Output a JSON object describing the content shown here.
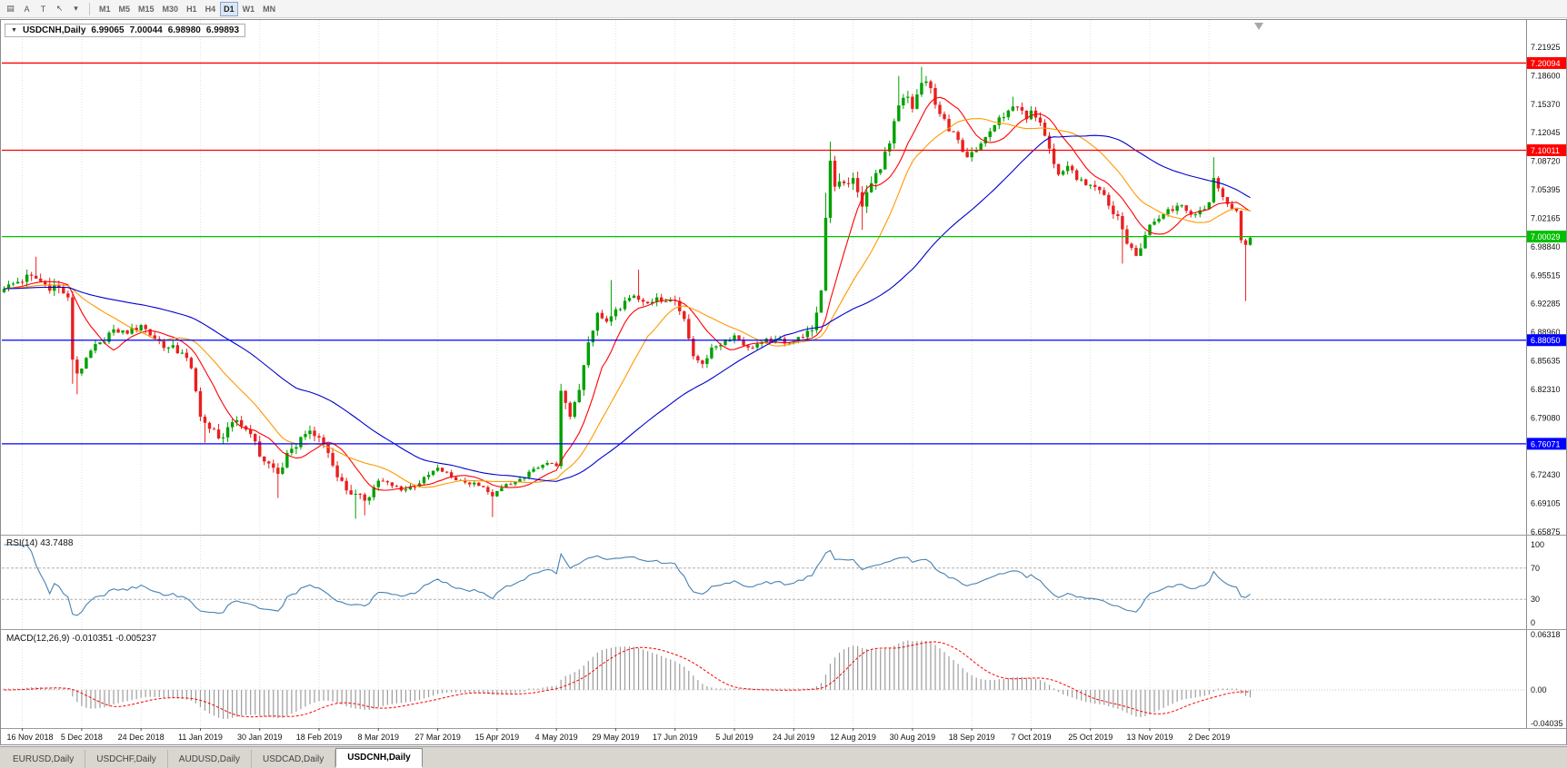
{
  "toolbar": {
    "tools": [
      {
        "name": "chart-grid-icon",
        "glyph": "▤"
      },
      {
        "name": "a-tool-button",
        "glyph": "A"
      },
      {
        "name": "t-tool-button",
        "glyph": "T"
      },
      {
        "name": "cursor-tool-button",
        "glyph": "↖"
      },
      {
        "name": "tool-dropdown-arrow-icon",
        "glyph": "▾"
      }
    ],
    "timeframes": [
      {
        "label": "M1",
        "active": false
      },
      {
        "label": "M5",
        "active": false
      },
      {
        "label": "M15",
        "active": false
      },
      {
        "label": "M30",
        "active": false
      },
      {
        "label": "H1",
        "active": false
      },
      {
        "label": "H4",
        "active": false
      },
      {
        "label": "D1",
        "active": true
      },
      {
        "label": "W1",
        "active": false
      },
      {
        "label": "MN",
        "active": false
      }
    ]
  },
  "chart": {
    "header": {
      "dropdown_glyph": "▼",
      "symbol_label": "USDCNH,Daily",
      "open": "6.99065",
      "high": "7.00044",
      "low": "6.98980",
      "close": "6.99893"
    }
  },
  "indicators": {
    "rsi": {
      "label": "RSI(14) 43.7488",
      "period": 14,
      "axis_labels": [
        "100",
        "70",
        "30",
        "0"
      ],
      "levels": [
        70,
        30
      ]
    },
    "macd": {
      "label": "MACD(12,26,9) -0.010351 -0.005237",
      "fast": 12,
      "slow": 26,
      "signal": 9,
      "axis_labels": [
        "0.06318",
        "0.00",
        "-0.04035"
      ]
    }
  },
  "tabs": {
    "items": [
      {
        "label": "EURUSD,Daily",
        "active": false
      },
      {
        "label": "USDCHF,Daily",
        "active": false
      },
      {
        "label": "AUDUSD,Daily",
        "active": false
      },
      {
        "label": "USDCAD,Daily",
        "active": false
      },
      {
        "label": "USDCNH,Daily",
        "active": true
      }
    ]
  },
  "colors": {
    "bull": "#00A000",
    "bear": "#E82020",
    "rsi": "#4682B4",
    "macd_hist": "#9C9C9C",
    "macd_signal": "#FF0000",
    "grid": "#E0E0E0"
  },
  "chart_data": {
    "type": "candlestick",
    "symbol": "USDCNH",
    "timeframe": "Daily",
    "bars_total": 274,
    "price_ticks": [
      "7.21925",
      "7.18600",
      "7.15370",
      "7.12045",
      "7.08720",
      "7.05395",
      "7.02165",
      "6.98840",
      "6.95515",
      "6.92285",
      "6.88960",
      "6.85635",
      "6.82310",
      "6.79080",
      "6.75755",
      "6.72430",
      "6.69105",
      "6.65875"
    ],
    "h_lines": [
      {
        "price": 7.20094,
        "label": "7.20094",
        "color": "#FF0000"
      },
      {
        "price": 7.10011,
        "label": "7.10011",
        "color": "#FF0000"
      },
      {
        "price": 7.00029,
        "label": "7.00029",
        "color": "#00C000"
      },
      {
        "price": 6.8805,
        "label": "6.88050",
        "color": "#0000FF"
      },
      {
        "price": 6.76071,
        "label": "6.76071",
        "color": "#0000FF"
      }
    ],
    "moving_averages": [
      {
        "period": 10,
        "color": "#FF0000"
      },
      {
        "period": 20,
        "color": "#FF9900"
      },
      {
        "period": 50,
        "color": "#0000CD"
      }
    ],
    "date_ticks": [
      {
        "bar": 4,
        "label": "16 Nov 2018"
      },
      {
        "bar": 17,
        "label": "5 Dec 2018"
      },
      {
        "bar": 30,
        "label": "24 Dec 2018"
      },
      {
        "bar": 43,
        "label": "11 Jan 2019"
      },
      {
        "bar": 56,
        "label": "30 Jan 2019"
      },
      {
        "bar": 69,
        "label": "18 Feb 2019"
      },
      {
        "bar": 82,
        "label": "8 Mar 2019"
      },
      {
        "bar": 95,
        "label": "27 Mar 2019"
      },
      {
        "bar": 108,
        "label": "15 Apr 2019"
      },
      {
        "bar": 121,
        "label": "4 May 2019"
      },
      {
        "bar": 134,
        "label": "29 May 2019"
      },
      {
        "bar": 147,
        "label": "17 Jun 2019"
      },
      {
        "bar": 160,
        "label": "5 Jul 2019"
      },
      {
        "bar": 173,
        "label": "24 Jul 2019"
      },
      {
        "bar": 186,
        "label": "12 Aug 2019"
      },
      {
        "bar": 199,
        "label": "30 Aug 2019"
      },
      {
        "bar": 212,
        "label": "18 Sep 2019"
      },
      {
        "bar": 225,
        "label": "7 Oct 2019"
      },
      {
        "bar": 238,
        "label": "25 Oct 2019"
      },
      {
        "bar": 251,
        "label": "13 Nov 2019"
      },
      {
        "bar": 264,
        "label": "2 Dec 2019"
      }
    ],
    "close_keypoints": [
      [
        0,
        6.94
      ],
      [
        3,
        6.948
      ],
      [
        6,
        6.955
      ],
      [
        9,
        6.945
      ],
      [
        12,
        6.942
      ],
      [
        14,
        6.93
      ],
      [
        15,
        6.858
      ],
      [
        16,
        6.842
      ],
      [
        18,
        6.86
      ],
      [
        21,
        6.878
      ],
      [
        24,
        6.893
      ],
      [
        27,
        6.888
      ],
      [
        30,
        6.898
      ],
      [
        33,
        6.882
      ],
      [
        36,
        6.872
      ],
      [
        39,
        6.866
      ],
      [
        41,
        6.848
      ],
      [
        43,
        6.792
      ],
      [
        45,
        6.778
      ],
      [
        48,
        6.768
      ],
      [
        51,
        6.788
      ],
      [
        54,
        6.772
      ],
      [
        56,
        6.746
      ],
      [
        58,
        6.738
      ],
      [
        60,
        6.726
      ],
      [
        63,
        6.755
      ],
      [
        66,
        6.772
      ],
      [
        69,
        6.768
      ],
      [
        71,
        6.75
      ],
      [
        73,
        6.722
      ],
      [
        76,
        6.702
      ],
      [
        79,
        6.695
      ],
      [
        82,
        6.718
      ],
      [
        85,
        6.712
      ],
      [
        88,
        6.708
      ],
      [
        91,
        6.715
      ],
      [
        95,
        6.733
      ],
      [
        98,
        6.722
      ],
      [
        101,
        6.716
      ],
      [
        104,
        6.712
      ],
      [
        107,
        6.7
      ],
      [
        108,
        6.706
      ],
      [
        111,
        6.714
      ],
      [
        114,
        6.722
      ],
      [
        117,
        6.733
      ],
      [
        120,
        6.738
      ],
      [
        121,
        6.735
      ],
      [
        122,
        6.822
      ],
      [
        123,
        6.808
      ],
      [
        124,
        6.792
      ],
      [
        126,
        6.823
      ],
      [
        128,
        6.878
      ],
      [
        130,
        6.912
      ],
      [
        132,
        6.902
      ],
      [
        134,
        6.916
      ],
      [
        136,
        6.926
      ],
      [
        138,
        6.932
      ],
      [
        140,
        6.925
      ],
      [
        143,
        6.93
      ],
      [
        147,
        6.926
      ],
      [
        149,
        6.905
      ],
      [
        151,
        6.862
      ],
      [
        153,
        6.853
      ],
      [
        155,
        6.872
      ],
      [
        158,
        6.88
      ],
      [
        160,
        6.886
      ],
      [
        163,
        6.872
      ],
      [
        166,
        6.878
      ],
      [
        169,
        6.882
      ],
      [
        172,
        6.878
      ],
      [
        175,
        6.884
      ],
      [
        177,
        6.892
      ],
      [
        179,
        6.938
      ],
      [
        180,
        7.022
      ],
      [
        181,
        7.088
      ],
      [
        182,
        7.058
      ],
      [
        184,
        7.062
      ],
      [
        186,
        7.068
      ],
      [
        188,
        7.035
      ],
      [
        190,
        7.062
      ],
      [
        192,
        7.078
      ],
      [
        194,
        7.108
      ],
      [
        196,
        7.152
      ],
      [
        198,
        7.162
      ],
      [
        199,
        7.148
      ],
      [
        201,
        7.178
      ],
      [
        203,
        7.172
      ],
      [
        205,
        7.142
      ],
      [
        207,
        7.122
      ],
      [
        209,
        7.112
      ],
      [
        211,
        7.092
      ],
      [
        212,
        7.098
      ],
      [
        214,
        7.108
      ],
      [
        216,
        7.122
      ],
      [
        218,
        7.138
      ],
      [
        220,
        7.146
      ],
      [
        222,
        7.15
      ],
      [
        224,
        7.136
      ],
      [
        225,
        7.146
      ],
      [
        227,
        7.132
      ],
      [
        229,
        7.102
      ],
      [
        231,
        7.072
      ],
      [
        233,
        7.082
      ],
      [
        235,
        7.066
      ],
      [
        238,
        7.06
      ],
      [
        240,
        7.054
      ],
      [
        242,
        7.036
      ],
      [
        244,
        7.024
      ],
      [
        246,
        6.992
      ],
      [
        248,
        6.978
      ],
      [
        250,
        7.002
      ],
      [
        251,
        7.014
      ],
      [
        253,
        7.021
      ],
      [
        255,
        7.032
      ],
      [
        257,
        7.036
      ],
      [
        259,
        7.03
      ],
      [
        261,
        7.026
      ],
      [
        263,
        7.032
      ],
      [
        264,
        7.04
      ],
      [
        265,
        7.068
      ],
      [
        266,
        7.056
      ],
      [
        267,
        7.046
      ],
      [
        268,
        7.038
      ],
      [
        270,
        7.03
      ],
      [
        271,
        6.996
      ],
      [
        272,
        6.9907
      ],
      [
        273,
        6.99893
      ]
    ],
    "volatility_keypoints": [
      [
        0,
        0.01
      ],
      [
        13,
        0.016
      ],
      [
        17,
        0.014
      ],
      [
        25,
        0.009
      ],
      [
        40,
        0.012
      ],
      [
        44,
        0.012
      ],
      [
        60,
        0.012
      ],
      [
        75,
        0.012
      ],
      [
        90,
        0.007
      ],
      [
        110,
        0.007
      ],
      [
        120,
        0.006
      ],
      [
        122,
        0.016
      ],
      [
        130,
        0.012
      ],
      [
        140,
        0.009
      ],
      [
        150,
        0.012
      ],
      [
        160,
        0.007
      ],
      [
        175,
        0.008
      ],
      [
        180,
        0.022
      ],
      [
        185,
        0.016
      ],
      [
        195,
        0.014
      ],
      [
        205,
        0.012
      ],
      [
        215,
        0.01
      ],
      [
        228,
        0.012
      ],
      [
        240,
        0.009
      ],
      [
        248,
        0.012
      ],
      [
        258,
        0.008
      ],
      [
        265,
        0.012
      ],
      [
        273,
        0.006
      ]
    ],
    "wick_overrides": [
      {
        "b": 7,
        "h": 6.977
      },
      {
        "b": 15,
        "l": 6.83
      },
      {
        "b": 16,
        "l": 6.818
      },
      {
        "b": 44,
        "l": 6.762
      },
      {
        "b": 60,
        "l": 6.698
      },
      {
        "b": 77,
        "l": 6.674
      },
      {
        "b": 79,
        "l": 6.678
      },
      {
        "b": 107,
        "l": 6.676
      },
      {
        "b": 122,
        "h": 6.83
      },
      {
        "b": 133,
        "h": 6.95
      },
      {
        "b": 139,
        "h": 6.962
      },
      {
        "b": 180,
        "h": 7.051
      },
      {
        "b": 181,
        "h": 7.11
      },
      {
        "b": 188,
        "l": 7.008
      },
      {
        "b": 196,
        "h": 7.186
      },
      {
        "b": 201,
        "h": 7.1965
      },
      {
        "b": 221,
        "h": 7.162
      },
      {
        "b": 245,
        "l": 6.969
      },
      {
        "b": 265,
        "h": 7.092
      },
      {
        "b": 272,
        "l": 6.9258
      },
      {
        "b": 273,
        "h": 7.00044,
        "l": 6.9898
      }
    ]
  }
}
